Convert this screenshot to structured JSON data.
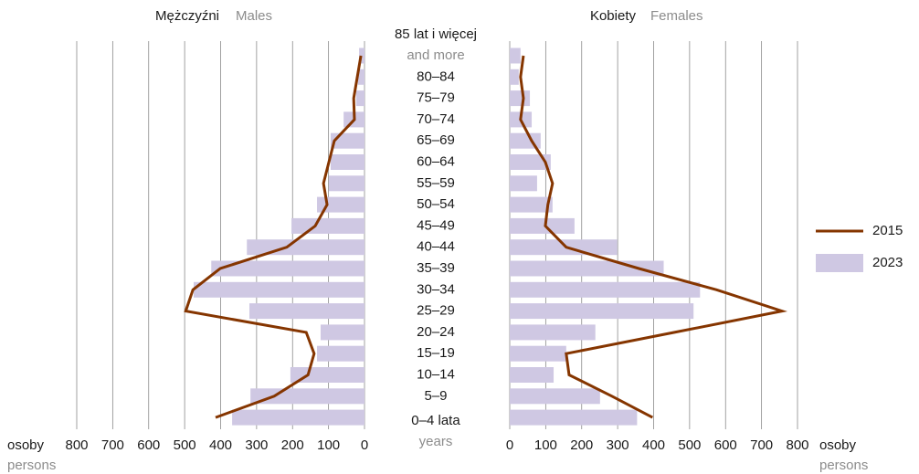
{
  "chart_data": {
    "type": "pyramid",
    "categories": [
      "85 lat i więcej",
      "80–84",
      "75–79",
      "70–74",
      "65–69",
      "60–64",
      "55–59",
      "50–54",
      "45–49",
      "40–44",
      "35–39",
      "30–34",
      "25–29",
      "20–24",
      "15–19",
      "10–14",
      "5–9",
      "0–4 lata"
    ],
    "top_category_subtitle": "and more",
    "bottom_category_subtitle": "years",
    "xlim": [
      0,
      800
    ],
    "xticks": [
      0,
      100,
      200,
      300,
      400,
      500,
      600,
      700,
      800
    ],
    "axis_label": "osoby",
    "axis_label_en": "persons",
    "grid": true,
    "legend": "right",
    "panels": [
      {
        "title": "Mężczyźni",
        "title_en": "Males",
        "side": "left",
        "series": [
          {
            "name": "2015",
            "kind": "line",
            "color": "#853500",
            "values": [
              10,
              20,
              30,
              28,
              84,
              99,
              114,
              104,
              137,
              216,
              401,
              477,
              497,
              162,
              140,
              157,
              251,
              414
            ]
          },
          {
            "name": "2023",
            "kind": "bar",
            "color": "#cfc8e3",
            "values": [
              15,
              18,
              23,
              58,
              94,
              94,
              99,
              132,
              203,
              327,
              426,
              475,
              320,
              122,
              132,
              206,
              317,
              368
            ]
          }
        ]
      },
      {
        "title": "Kobiety",
        "title_en": "Females",
        "side": "right",
        "series": [
          {
            "name": "2015",
            "kind": "line",
            "color": "#853500",
            "values": [
              38,
              30,
              38,
              30,
              61,
              99,
              119,
              106,
              99,
              157,
              359,
              575,
              757,
              458,
              157,
              165,
              284,
              397
            ]
          },
          {
            "name": "2023",
            "kind": "bar",
            "color": "#cfc8e3",
            "values": [
              30,
              25,
              56,
              61,
              86,
              114,
              76,
              119,
              180,
              299,
              428,
              529,
              511,
              238,
              157,
              122,
              251,
              354
            ]
          }
        ]
      }
    ]
  }
}
